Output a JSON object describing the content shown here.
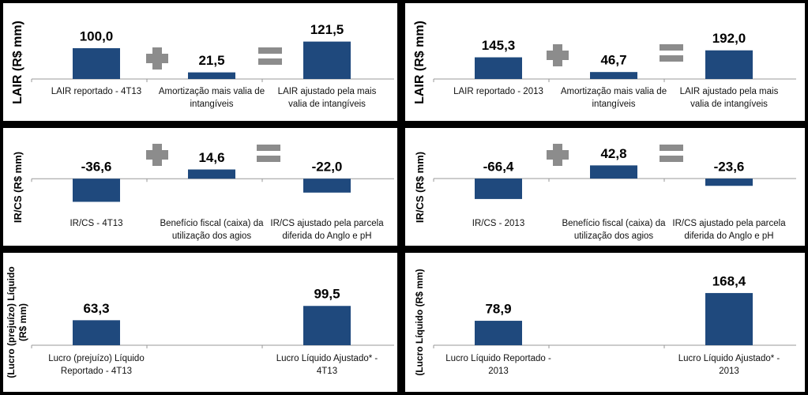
{
  "chart_data": [
    {
      "type": "bar",
      "ylabel": "LAIR (R$ mm)",
      "categories": [
        "LAIR reportado - 4T13",
        "Amortização mais valia de intangíveis",
        "LAIR ajustado pela mais valia de intangíveis"
      ],
      "values": [
        100.0,
        21.5,
        121.5
      ],
      "value_labels": [
        "100,0",
        "21,5",
        "121,5"
      ],
      "color": "#1f497d",
      "ylim": [
        0,
        218
      ]
    },
    {
      "type": "bar",
      "ylabel": "LAIR (R$ mm)",
      "categories": [
        "LAIR reportado - 2013",
        "Amortização mais valia de intangíveis",
        "LAIR ajustado pela mais valia de intangíveis"
      ],
      "values": [
        145.3,
        46.7,
        192.0
      ],
      "value_labels": [
        "145,3",
        "46,7",
        "192,0"
      ],
      "color": "#1f497d",
      "ylim": [
        0,
        450
      ]
    },
    {
      "type": "bar",
      "ylabel": "IR/CS (R$ mm)",
      "categories": [
        "IR/CS - 4T13",
        "Benefício fiscal (caixa) da utilização dos agios",
        "IR/CS ajustado pela parcela diferida do Anglo e pH"
      ],
      "values": [
        -36.6,
        14.6,
        -22.0
      ],
      "value_labels": [
        "-36,6",
        "14,6",
        "-22,0"
      ],
      "color": "#1f497d",
      "ylim": [
        -86,
        64
      ]
    },
    {
      "type": "bar",
      "ylabel": "IR/CS (R$ mm)",
      "categories": [
        "IR/CS - 2013",
        "Benefício fiscal (caixa) da utilização dos agios",
        "IR/CS ajustado pela parcela diferida do Anglo e pH"
      ],
      "values": [
        -66.4,
        42.8,
        -23.6
      ],
      "value_labels": [
        "-66,4",
        "42,8",
        "-23,6"
      ],
      "color": "#1f497d",
      "ylim": [
        -177,
        131
      ]
    },
    {
      "type": "bar",
      "ylabel": "(Lucro (prejuízo) Líquido (R$ mm)",
      "categories": [
        "Lucro (prejuízo) Líquido Reportado - 4T13",
        null,
        "Lucro Líquido Ajustado* - 4T13"
      ],
      "values": [
        63.3,
        null,
        99.5
      ],
      "value_labels": [
        "63,3",
        null,
        "99,5"
      ],
      "color": "#1f497d",
      "ylim": [
        0,
        204
      ]
    },
    {
      "type": "bar",
      "ylabel": "(Lucro Líquido (R$ mm)",
      "categories": [
        "Lucro Líquido Reportado - 2013",
        null,
        "Lucro Líquido Ajustado* - 2013"
      ],
      "values": [
        78.9,
        null,
        168.4
      ],
      "value_labels": [
        "78,9",
        null,
        "168,4"
      ],
      "color": "#1f497d",
      "ylim": [
        0,
        260
      ]
    }
  ]
}
